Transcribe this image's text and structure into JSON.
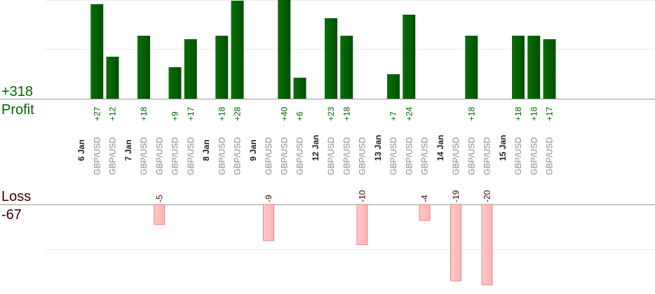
{
  "chart_data": {
    "type": "bar",
    "profit_total": "+318",
    "profit_label": "Profit",
    "loss_label": "Loss",
    "loss_total": "-67",
    "colors": {
      "profit": "#0a6e0a",
      "profit_dark": "#005000",
      "loss": "#ffb3b3",
      "loss_edge": "#e88888",
      "profit_text": "#006400",
      "loss_text": "#3a0000",
      "day_text": "#222222",
      "pair_text": "#888888"
    },
    "ylim_profit": [
      0,
      28
    ],
    "ylim_loss": [
      -20,
      0
    ],
    "columns": [
      {
        "type": "day",
        "label": "6 Jan"
      },
      {
        "type": "trade",
        "label": "GBP/USD",
        "value": 27,
        "value_label": "+27"
      },
      {
        "type": "trade",
        "label": "GBP/USD",
        "value": 12,
        "value_label": "+12"
      },
      {
        "type": "day",
        "label": "7 Jan"
      },
      {
        "type": "trade",
        "label": "GBP/USD",
        "value": 18,
        "value_label": "+18"
      },
      {
        "type": "trade",
        "label": "GBP/USD",
        "value": -5,
        "value_label": "-5"
      },
      {
        "type": "trade",
        "label": "GBP/USD",
        "value": 9,
        "value_label": "+9"
      },
      {
        "type": "trade",
        "label": "GBP/USD",
        "value": 17,
        "value_label": "+17"
      },
      {
        "type": "day",
        "label": "8 Jan"
      },
      {
        "type": "trade",
        "label": "GBP/USD",
        "value": 18,
        "value_label": "+18"
      },
      {
        "type": "trade",
        "label": "GBP/USD",
        "value": 28,
        "value_label": "+28"
      },
      {
        "type": "day",
        "label": "9 Jan"
      },
      {
        "type": "trade",
        "label": "GBP/USD",
        "value": -9,
        "value_label": "-9"
      },
      {
        "type": "trade",
        "label": "GBP/USD",
        "value": 40,
        "value_label": "+40"
      },
      {
        "type": "trade",
        "label": "GBP/USD",
        "value": 6,
        "value_label": "+6"
      },
      {
        "type": "day",
        "label": "12 Jan"
      },
      {
        "type": "trade",
        "label": "GBP/USD",
        "value": 23,
        "value_label": "+23"
      },
      {
        "type": "trade",
        "label": "GBP/USD",
        "value": 18,
        "value_label": "+18"
      },
      {
        "type": "trade",
        "label": "GBP/USD",
        "value": -10,
        "value_label": "-10"
      },
      {
        "type": "day",
        "label": "13 Jan"
      },
      {
        "type": "trade",
        "label": "GBP/USD",
        "value": 7,
        "value_label": "+7"
      },
      {
        "type": "trade",
        "label": "GBP/USD",
        "value": 24,
        "value_label": "+24"
      },
      {
        "type": "trade",
        "label": "GBP/USD",
        "value": -4,
        "value_label": "-4"
      },
      {
        "type": "day",
        "label": "14 Jan"
      },
      {
        "type": "trade",
        "label": "GBP/USD",
        "value": -19,
        "value_label": "-19"
      },
      {
        "type": "trade",
        "label": "GBP/USD",
        "value": 18,
        "value_label": "+18"
      },
      {
        "type": "trade",
        "label": "GBP/USD",
        "value": -20,
        "value_label": "-20"
      },
      {
        "type": "day",
        "label": "15 Jan"
      },
      {
        "type": "trade",
        "label": "GBP/USD",
        "value": 18,
        "value_label": "+18"
      },
      {
        "type": "trade",
        "label": "GBP/USD",
        "value": 18,
        "value_label": "+18"
      },
      {
        "type": "trade",
        "label": "GBP/USD",
        "value": 17,
        "value_label": "+17"
      }
    ]
  }
}
